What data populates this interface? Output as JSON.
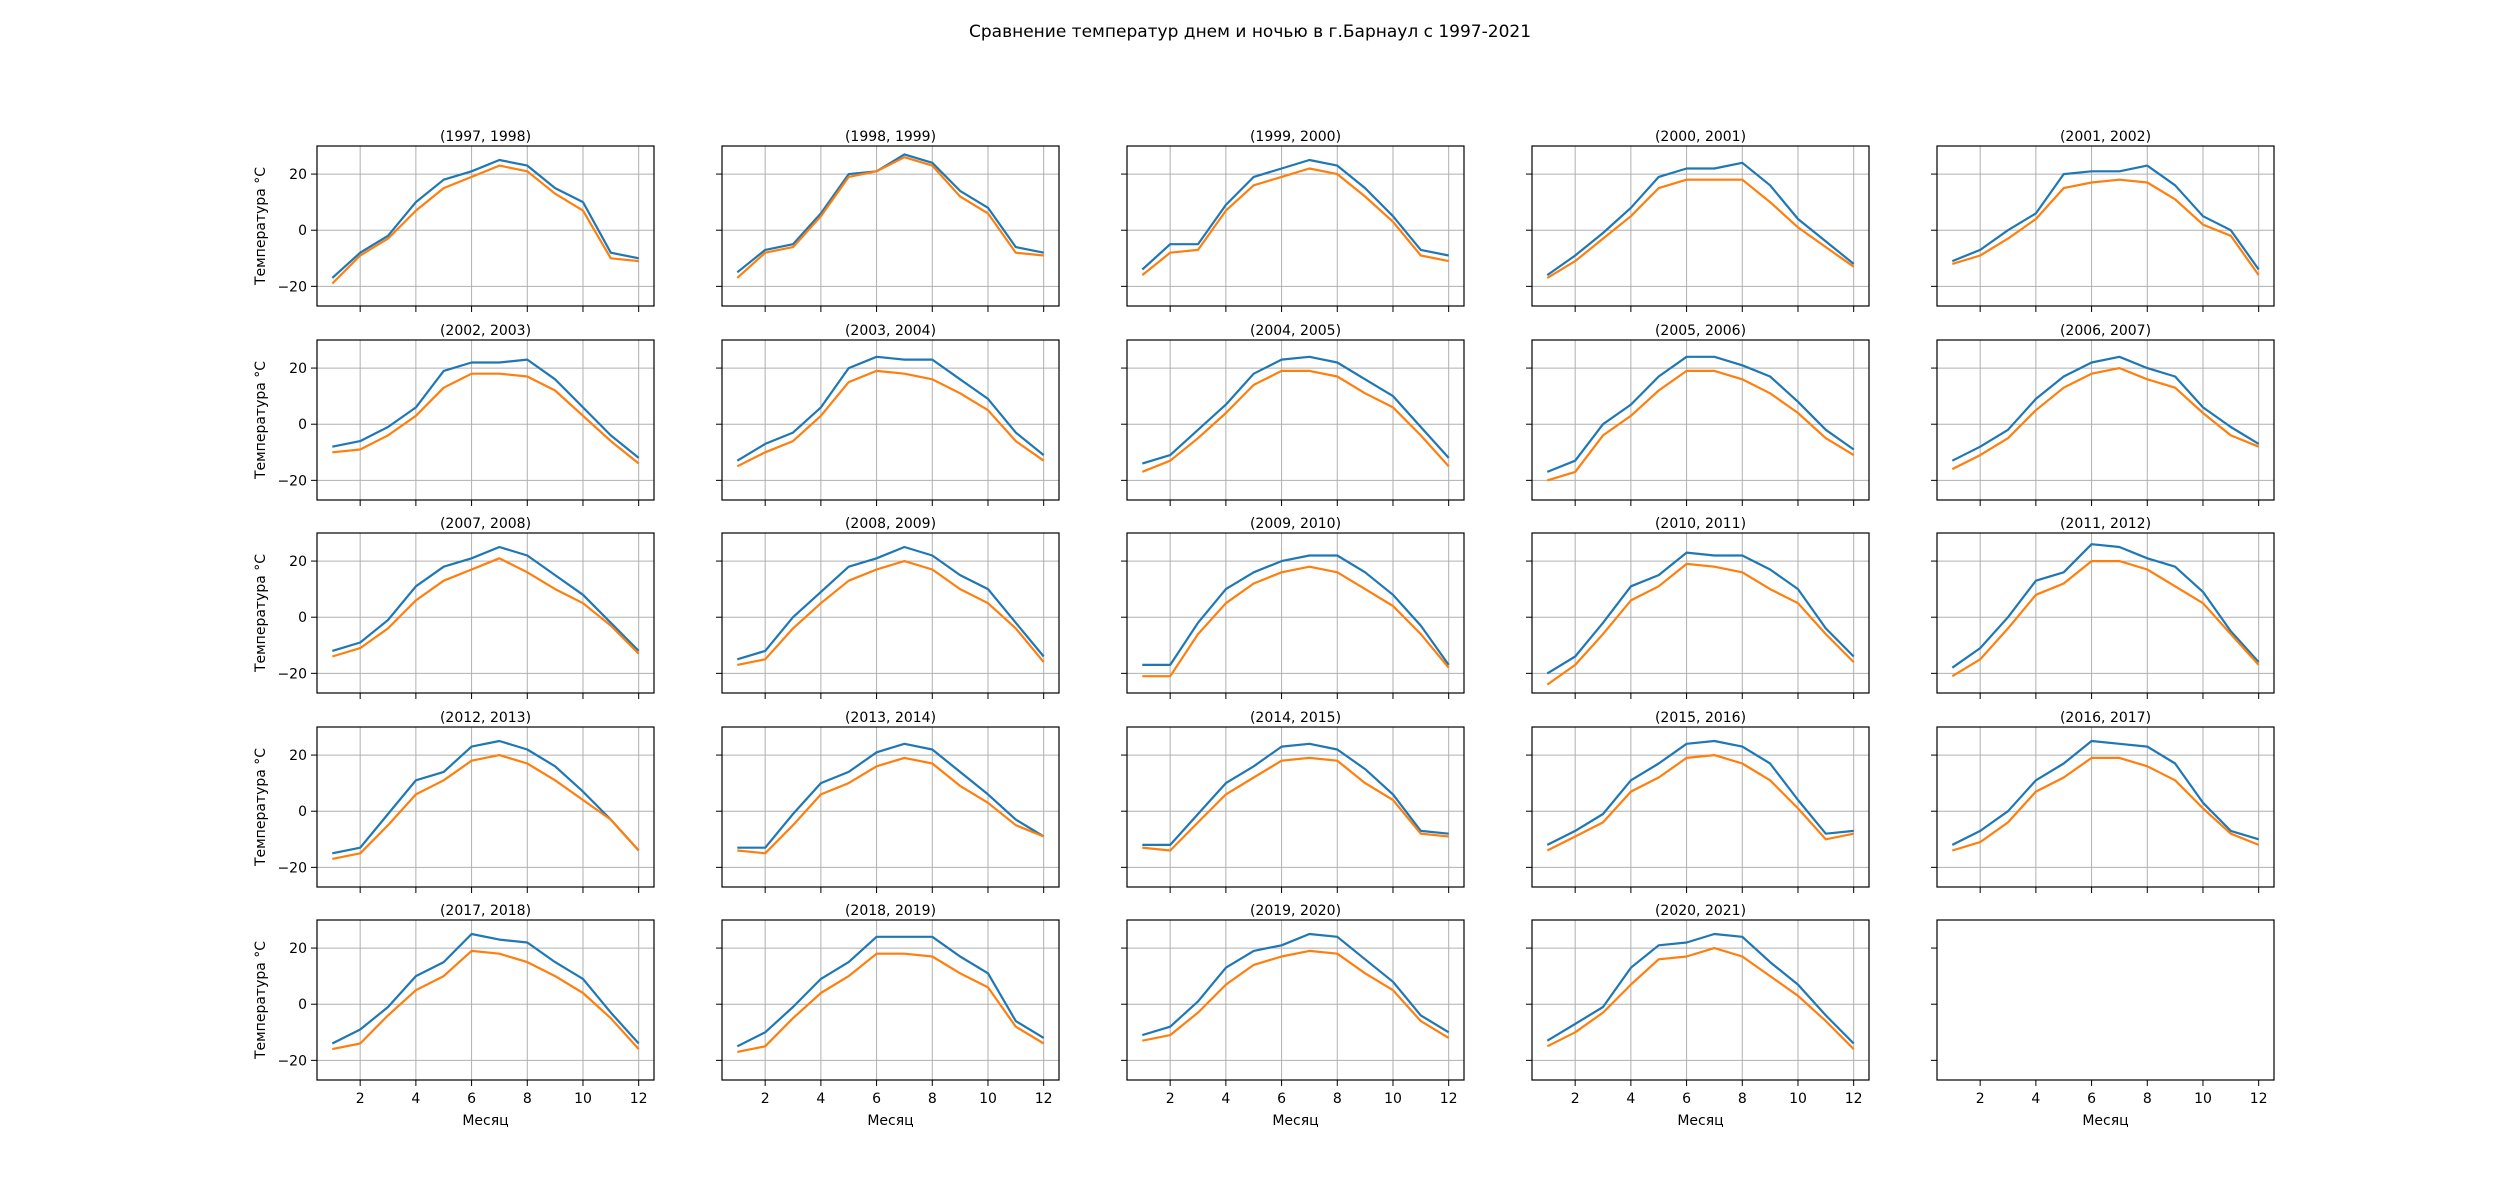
{
  "figure": {
    "title": "Сравнение температур днем и ночью в г.Барнаул с 1997-2021",
    "ylabel": "Температура °C",
    "xlabel": "Месяц",
    "colors": {
      "day": "#1f77b4",
      "night": "#ff7f0e",
      "grid": "#b0b0b0"
    }
  },
  "chart_data": {
    "type": "line",
    "title": "Сравнение температур днем и ночью в г.Барнаул с 1997-2021",
    "xlabel": "Месяц",
    "ylabel": "Температура °C",
    "x": [
      1,
      2,
      3,
      4,
      5,
      6,
      7,
      8,
      9,
      10,
      11,
      12
    ],
    "xticks": [
      2,
      4,
      6,
      8,
      10,
      12
    ],
    "yticks": [
      -20,
      0,
      20
    ],
    "ylim": [
      -27,
      30
    ],
    "xlim": [
      0.45,
      12.55
    ],
    "grid": true,
    "legend": "none",
    "panels": [
      {
        "title": "(1997, 1998)",
        "series": [
          {
            "values": [
              -17,
              -8,
              -2,
              10,
              18,
              21,
              25,
              23,
              15,
              10,
              -8,
              -10
            ]
          },
          {
            "values": [
              -19,
              -9,
              -3,
              7,
              15,
              19,
              23,
              21,
              13,
              7,
              -10,
              -11
            ]
          }
        ]
      },
      {
        "title": "(1998, 1999)",
        "series": [
          {
            "values": [
              -15,
              -7,
              -5,
              6,
              20,
              21,
              27,
              24,
              14,
              8,
              -6,
              -8
            ]
          },
          {
            "values": [
              -17,
              -8,
              -6,
              5,
              19,
              21,
              26,
              23,
              12,
              6,
              -8,
              -9
            ]
          }
        ]
      },
      {
        "title": "(1999, 2000)",
        "series": [
          {
            "values": [
              -14,
              -5,
              -5,
              9,
              19,
              22,
              25,
              23,
              15,
              5,
              -7,
              -9
            ]
          },
          {
            "values": [
              -16,
              -8,
              -7,
              7,
              16,
              19,
              22,
              20,
              12,
              3,
              -9,
              -11
            ]
          }
        ]
      },
      {
        "title": "(2000, 2001)",
        "series": [
          {
            "values": [
              -16,
              -9,
              -1,
              8,
              19,
              22,
              22,
              24,
              16,
              4,
              -4,
              -12
            ]
          },
          {
            "values": [
              -17,
              -11,
              -3,
              5,
              15,
              18,
              18,
              18,
              10,
              1,
              -6,
              -13
            ]
          }
        ]
      },
      {
        "title": "(2001, 2002)",
        "series": [
          {
            "values": [
              -11,
              -7,
              0,
              6,
              20,
              21,
              21,
              23,
              16,
              5,
              0,
              -14
            ]
          },
          {
            "values": [
              -12,
              -9,
              -3,
              4,
              15,
              17,
              18,
              17,
              11,
              2,
              -2,
              -16
            ]
          }
        ]
      },
      {
        "title": "(2002, 2003)",
        "series": [
          {
            "values": [
              -8,
              -6,
              -1,
              6,
              19,
              22,
              22,
              23,
              16,
              6,
              -4,
              -12
            ]
          },
          {
            "values": [
              -10,
              -9,
              -4,
              3,
              13,
              18,
              18,
              17,
              12,
              3,
              -6,
              -14
            ]
          }
        ]
      },
      {
        "title": "(2003, 2004)",
        "series": [
          {
            "values": [
              -13,
              -7,
              -3,
              6,
              20,
              24,
              23,
              23,
              16,
              9,
              -3,
              -11
            ]
          },
          {
            "values": [
              -15,
              -10,
              -6,
              3,
              15,
              19,
              18,
              16,
              11,
              5,
              -6,
              -13
            ]
          }
        ]
      },
      {
        "title": "(2004, 2005)",
        "series": [
          {
            "values": [
              -14,
              -11,
              -2,
              7,
              18,
              23,
              24,
              22,
              16,
              10,
              -1,
              -12
            ]
          },
          {
            "values": [
              -17,
              -13,
              -5,
              4,
              14,
              19,
              19,
              17,
              11,
              6,
              -4,
              -15
            ]
          }
        ]
      },
      {
        "title": "(2005, 2006)",
        "series": [
          {
            "values": [
              -17,
              -13,
              0,
              7,
              17,
              24,
              24,
              21,
              17,
              8,
              -2,
              -9
            ]
          },
          {
            "values": [
              -20,
              -17,
              -4,
              3,
              12,
              19,
              19,
              16,
              11,
              4,
              -5,
              -11
            ]
          }
        ]
      },
      {
        "title": "(2006, 2007)",
        "series": [
          {
            "values": [
              -13,
              -8,
              -2,
              9,
              17,
              22,
              24,
              20,
              17,
              6,
              -1,
              -7
            ]
          },
          {
            "values": [
              -16,
              -11,
              -5,
              5,
              13,
              18,
              20,
              16,
              13,
              4,
              -4,
              -8
            ]
          }
        ]
      },
      {
        "title": "(2007, 2008)",
        "series": [
          {
            "values": [
              -12,
              -9,
              -1,
              11,
              18,
              21,
              25,
              22,
              15,
              8,
              -2,
              -12
            ]
          },
          {
            "values": [
              -14,
              -11,
              -4,
              6,
              13,
              17,
              21,
              16,
              10,
              5,
              -3,
              -13
            ]
          }
        ]
      },
      {
        "title": "(2008, 2009)",
        "series": [
          {
            "values": [
              -15,
              -12,
              0,
              9,
              18,
              21,
              25,
              22,
              15,
              10,
              -2,
              -14
            ]
          },
          {
            "values": [
              -17,
              -15,
              -4,
              5,
              13,
              17,
              20,
              17,
              10,
              5,
              -4,
              -16
            ]
          }
        ]
      },
      {
        "title": "(2009, 2010)",
        "series": [
          {
            "values": [
              -17,
              -17,
              -2,
              10,
              16,
              20,
              22,
              22,
              16,
              8,
              -3,
              -17
            ]
          },
          {
            "values": [
              -21,
              -21,
              -6,
              5,
              12,
              16,
              18,
              16,
              10,
              4,
              -6,
              -18
            ]
          }
        ]
      },
      {
        "title": "(2010, 2011)",
        "series": [
          {
            "values": [
              -20,
              -14,
              -2,
              11,
              15,
              23,
              22,
              22,
              17,
              10,
              -4,
              -14
            ]
          },
          {
            "values": [
              -24,
              -17,
              -6,
              6,
              11,
              19,
              18,
              16,
              10,
              5,
              -6,
              -16
            ]
          }
        ]
      },
      {
        "title": "(2011, 2012)",
        "series": [
          {
            "values": [
              -18,
              -11,
              0,
              13,
              16,
              26,
              25,
              21,
              18,
              9,
              -5,
              -16
            ]
          },
          {
            "values": [
              -21,
              -15,
              -4,
              8,
              12,
              20,
              20,
              17,
              11,
              5,
              -6,
              -17
            ]
          }
        ]
      },
      {
        "title": "(2012, 2013)",
        "series": [
          {
            "values": [
              -15,
              -13,
              -1,
              11,
              14,
              23,
              25,
              22,
              16,
              7,
              -3,
              -14
            ]
          },
          {
            "values": [
              -17,
              -15,
              -5,
              6,
              11,
              18,
              20,
              17,
              11,
              4,
              -3,
              -14
            ]
          }
        ]
      },
      {
        "title": "(2013, 2014)",
        "series": [
          {
            "values": [
              -13,
              -13,
              -1,
              10,
              14,
              21,
              24,
              22,
              14,
              6,
              -3,
              -9
            ]
          },
          {
            "values": [
              -14,
              -15,
              -5,
              6,
              10,
              16,
              19,
              17,
              9,
              3,
              -5,
              -9
            ]
          }
        ]
      },
      {
        "title": "(2014, 2015)",
        "series": [
          {
            "values": [
              -12,
              -12,
              -1,
              10,
              16,
              23,
              24,
              22,
              15,
              6,
              -7,
              -8
            ]
          },
          {
            "values": [
              -13,
              -14,
              -4,
              6,
              12,
              18,
              19,
              18,
              10,
              4,
              -8,
              -9
            ]
          }
        ]
      },
      {
        "title": "(2015, 2016)",
        "series": [
          {
            "values": [
              -12,
              -7,
              -1,
              11,
              17,
              24,
              25,
              23,
              17,
              4,
              -8,
              -7
            ]
          },
          {
            "values": [
              -14,
              -9,
              -4,
              7,
              12,
              19,
              20,
              17,
              11,
              1,
              -10,
              -8
            ]
          }
        ]
      },
      {
        "title": "(2016, 2017)",
        "series": [
          {
            "values": [
              -12,
              -7,
              0,
              11,
              17,
              25,
              24,
              23,
              17,
              3,
              -7,
              -10
            ]
          },
          {
            "values": [
              -14,
              -11,
              -4,
              7,
              12,
              19,
              19,
              16,
              11,
              1,
              -8,
              -12
            ]
          }
        ]
      },
      {
        "title": "(2017, 2018)",
        "series": [
          {
            "values": [
              -14,
              -9,
              -1,
              10,
              15,
              25,
              23,
              22,
              15,
              9,
              -3,
              -14
            ]
          },
          {
            "values": [
              -16,
              -14,
              -4,
              5,
              10,
              19,
              18,
              15,
              10,
              4,
              -5,
              -16
            ]
          }
        ]
      },
      {
        "title": "(2018, 2019)",
        "series": [
          {
            "values": [
              -15,
              -10,
              -1,
              9,
              15,
              24,
              24,
              24,
              17,
              11,
              -6,
              -12
            ]
          },
          {
            "values": [
              -17,
              -15,
              -5,
              4,
              10,
              18,
              18,
              17,
              11,
              6,
              -8,
              -14
            ]
          }
        ]
      },
      {
        "title": "(2019, 2020)",
        "series": [
          {
            "values": [
              -11,
              -8,
              1,
              13,
              19,
              21,
              25,
              24,
              16,
              8,
              -4,
              -10
            ]
          },
          {
            "values": [
              -13,
              -11,
              -3,
              7,
              14,
              17,
              19,
              18,
              11,
              5,
              -6,
              -12
            ]
          }
        ]
      },
      {
        "title": "(2020, 2021)",
        "series": [
          {
            "values": [
              -13,
              -7,
              -1,
              13,
              21,
              22,
              25,
              24,
              15,
              7,
              -4,
              -14
            ]
          },
          {
            "values": [
              -15,
              -10,
              -3,
              7,
              16,
              17,
              20,
              17,
              10,
              3,
              -6,
              -16
            ]
          }
        ]
      }
    ]
  }
}
